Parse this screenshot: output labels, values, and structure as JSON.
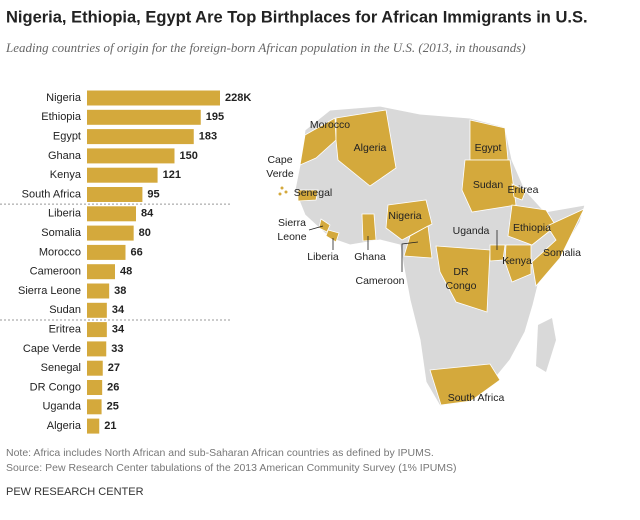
{
  "chart_data": {
    "type": "bar",
    "orientation": "horizontal",
    "title": "Nigeria, Ethiopia, Egypt Are Top Birthplaces for African Immigrants in U.S.",
    "subtitle": "Leading countries of origin for the foreign-born African population in the U.S. (2013, in thousands)",
    "categories": [
      "Nigeria",
      "Ethiopia",
      "Egypt",
      "Ghana",
      "Kenya",
      "South Africa",
      "Liberia",
      "Somalia",
      "Morocco",
      "Cameroon",
      "Sierra Leone",
      "Sudan",
      "Eritrea",
      "Cape Verde",
      "Senegal",
      "DR Congo",
      "Uganda",
      "Algeria"
    ],
    "values": [
      228,
      195,
      183,
      150,
      121,
      95,
      84,
      80,
      66,
      48,
      38,
      34,
      34,
      33,
      27,
      26,
      25,
      21
    ],
    "value_labels": [
      "228K",
      "195",
      "183",
      "150",
      "121",
      "95",
      "84",
      "80",
      "66",
      "48",
      "38",
      "34",
      "34",
      "33",
      "27",
      "26",
      "25",
      "21"
    ],
    "color": "#d4a93c",
    "map_labels": [
      [
        "Morocco"
      ],
      [
        "Algeria"
      ],
      [
        "Egypt"
      ],
      [
        "Cape",
        "Verde"
      ],
      [
        "Senegal"
      ],
      [
        "Sudan"
      ],
      [
        "Eritrea"
      ],
      [
        "Nigeria"
      ],
      [
        "Sierra",
        "Leone"
      ],
      [
        "Uganda"
      ],
      [
        "Ethiopia"
      ],
      [
        "Liberia"
      ],
      [
        "Ghana"
      ],
      [
        "Somalia"
      ],
      [
        "DR",
        "Congo"
      ],
      [
        "Kenya"
      ],
      [
        "Cameroon"
      ],
      [
        "South Africa"
      ]
    ],
    "note": "Note: Africa includes North African and sub-Saharan African countries as defined by IPUMS.",
    "source": "Source: Pew Research Center tabulations of the 2013 American Community Survey (1% IPUMS)",
    "credit": "PEW RESEARCH CENTER"
  }
}
